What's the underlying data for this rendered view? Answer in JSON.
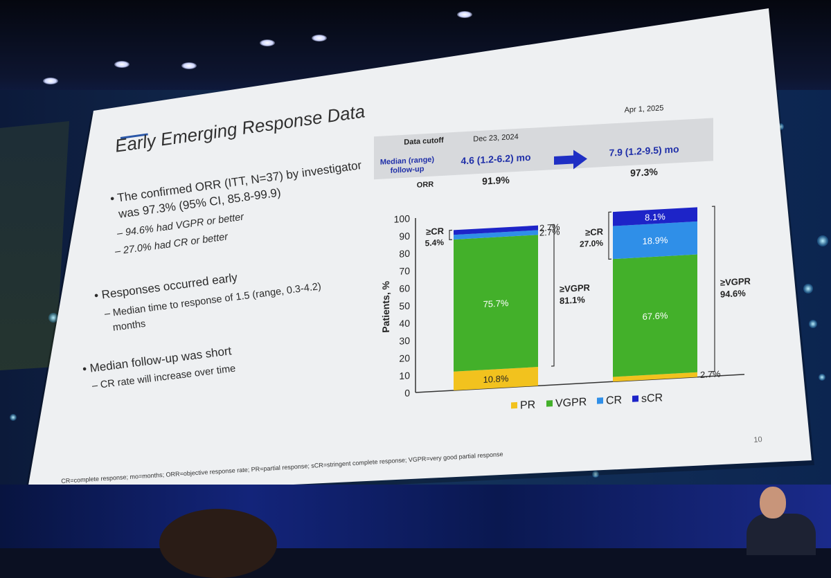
{
  "slide": {
    "title": "Early Emerging Response Data",
    "bullets": [
      "The confirmed ORR (ITT, N=37) by investigator",
      "was 97.3% (95% CI, 85.8-99.9)",
      "Responses occurred early",
      "Median follow-up was short"
    ],
    "sub_bullets": [
      "94.6% had VGPR or better",
      "27.0% had CR or better",
      "Median time to response of 1.5 (range, 0.3-4.2)",
      "months",
      "CR rate will increase over time"
    ],
    "footnote": "CR=complete response; mo=months; ORR=objective response rate; PR=partial response; sCR=stringent complete response; VGPR=very good partial response",
    "page_number": "10"
  },
  "chart_data": {
    "type": "bar",
    "stacked": true,
    "ylabel": "Patients, %",
    "ylim": [
      0,
      100
    ],
    "yticks": [
      "0",
      "10",
      "20",
      "30",
      "40",
      "50",
      "60",
      "70",
      "80",
      "90",
      "100"
    ],
    "header": {
      "data_cutoff_label": "Data cutoff",
      "follow_up_label_1": "Median (range)",
      "follow_up_label_2": "follow-up",
      "orr_label": "ORR"
    },
    "categories": [
      "Dec 23, 2024",
      "Apr 1, 2025"
    ],
    "follow_up": [
      "4.6 (1.2-6.2) mo",
      "7.9 (1.2-9.5) mo"
    ],
    "orr": [
      "91.9%",
      "97.3%"
    ],
    "series": [
      {
        "name": "PR",
        "color": "#f2c21e",
        "values": [
          10.8,
          2.7
        ],
        "labels": [
          "10.8%",
          "2.7%"
        ]
      },
      {
        "name": "VGPR",
        "color": "#43b02a",
        "values": [
          75.7,
          67.6
        ],
        "labels": [
          "75.7%",
          "67.6%"
        ]
      },
      {
        "name": "CR",
        "color": "#2f8fe8",
        "values": [
          2.7,
          18.9
        ],
        "labels": [
          "2.7%",
          "18.9%"
        ]
      },
      {
        "name": "sCR",
        "color": "#1d24c8",
        "values": [
          2.7,
          8.1
        ],
        "labels": [
          "2.7%",
          "8.1%"
        ]
      }
    ],
    "brackets": {
      "cr_or_better": [
        "≥CR",
        "5.4%",
        "27.0%"
      ],
      "vgpr_or_better": [
        "≥VGPR",
        "81.1%",
        "94.6%"
      ]
    },
    "legend": [
      "PR",
      "VGPR",
      "CR",
      "sCR"
    ],
    "title_text_color": "#1f2fa8"
  }
}
